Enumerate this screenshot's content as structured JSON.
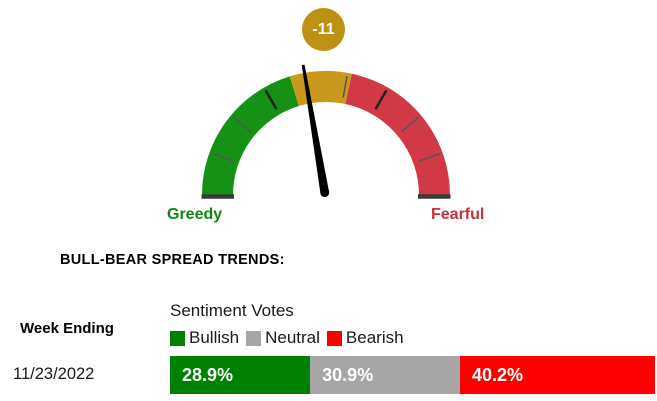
{
  "gauge": {
    "badge": "-11",
    "needle_angle_deg": -9.6,
    "left_label": "Greedy",
    "right_label": "Fearful",
    "colors": {
      "green": "#159115",
      "gold": "#c8991d",
      "red": "#d13a44",
      "badge_bg": "#bd9214",
      "badge_text": "#ffffff",
      "tick": "#555555",
      "tick_major": "#222222",
      "end_cap": "#3a3a3a",
      "needle": "#000000",
      "greedy_label": "#118611",
      "fearful_label": "#c5323c"
    }
  },
  "trends": {
    "heading": "BULL-BEAR SPREAD TRENDS:",
    "week_ending_label": "Week Ending",
    "legend_title": "Sentiment Votes",
    "legend": [
      {
        "label": "Bullish",
        "color": "#008000"
      },
      {
        "label": "Neutral",
        "color": "#a6a6a6"
      },
      {
        "label": "Bearish",
        "color": "#ff0000"
      }
    ],
    "row": {
      "week_ending": "11/23/2022",
      "segments": [
        {
          "name": "bullish",
          "label": "28.9%",
          "pct": 28.9,
          "color": "#008000"
        },
        {
          "name": "neutral",
          "label": "30.9%",
          "pct": 30.9,
          "color": "#a6a6a6"
        },
        {
          "name": "bearish",
          "label": "40.2%",
          "pct": 40.2,
          "color": "#ff0000"
        }
      ]
    }
  },
  "chart_data": [
    {
      "type": "gauge",
      "title": "Sentiment gauge (Bull-Bear Spread)",
      "value": -11,
      "badge_label": "-11",
      "end_labels": [
        "Greedy",
        "Fearful"
      ],
      "zones": [
        {
          "name": "greedy",
          "color": "#159115",
          "span_deg_from_vertical": [
            -90,
            -17
          ]
        },
        {
          "name": "neutral",
          "color": "#c8991d",
          "span_deg_from_vertical": [
            -17,
            12
          ]
        },
        {
          "name": "fearful",
          "color": "#d13a44",
          "span_deg_from_vertical": [
            12,
            90
          ]
        }
      ],
      "needle_angle_deg_from_vertical": -9.6
    },
    {
      "type": "bar",
      "stacked": true,
      "orientation": "horizontal",
      "title": "Sentiment Votes",
      "categories": [
        "11/23/2022"
      ],
      "series": [
        {
          "name": "Bullish",
          "values": [
            28.9
          ],
          "color": "#008000"
        },
        {
          "name": "Neutral",
          "values": [
            30.9
          ],
          "color": "#a6a6a6"
        },
        {
          "name": "Bearish",
          "values": [
            40.2
          ],
          "color": "#ff0000"
        }
      ],
      "unit": "%",
      "xlim": [
        0,
        100
      ],
      "legend_position": "top"
    }
  ]
}
